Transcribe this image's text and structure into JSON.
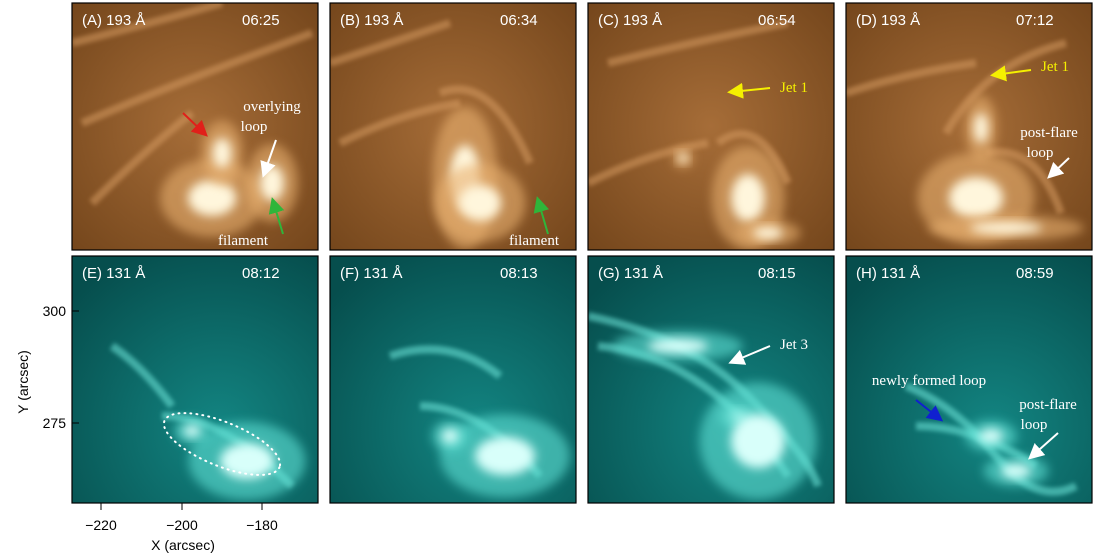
{
  "panels": [
    {
      "label": "(A) 193 Å",
      "time": "06:25",
      "annotations": [
        {
          "lines": [
            "overlying",
            "loop"
          ]
        },
        {
          "lines": [
            "filament"
          ]
        }
      ]
    },
    {
      "label": "(B) 193 Å",
      "time": "06:34",
      "annotations": [
        {
          "lines": [
            "filament"
          ]
        }
      ]
    },
    {
      "label": "(C) 193 Å",
      "time": "06:54",
      "annotations": [
        {
          "lines": [
            "Jet 1"
          ]
        }
      ]
    },
    {
      "label": "(D) 193 Å",
      "time": "07:12",
      "annotations": [
        {
          "lines": [
            "Jet 1"
          ]
        },
        {
          "lines": [
            "post-flare",
            "loop"
          ]
        }
      ]
    },
    {
      "label": "(E) 131 Å",
      "time": "08:12",
      "annotations": []
    },
    {
      "label": "(F) 131 Å",
      "time": "08:13",
      "annotations": []
    },
    {
      "label": "(G) 131 Å",
      "time": "08:15",
      "annotations": [
        {
          "lines": [
            "Jet 3"
          ]
        }
      ]
    },
    {
      "label": "(H) 131 Å",
      "time": "08:59",
      "annotations": [
        {
          "lines": [
            "newly formed loop"
          ]
        },
        {
          "lines": [
            "post-flare",
            "loop"
          ]
        }
      ]
    }
  ],
  "y_axis": {
    "label": "Y (arcsec)",
    "ticks": [
      "300",
      "275"
    ]
  },
  "x_axis": {
    "label": "X (arcsec)",
    "ticks": [
      "−220",
      "−200",
      "−180"
    ]
  }
}
